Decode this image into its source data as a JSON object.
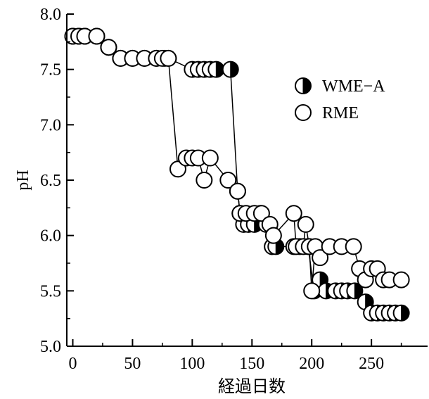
{
  "chart_data": {
    "type": "scatter",
    "xlabel": "経過日数",
    "ylabel": "pH",
    "xlim": [
      -5,
      297
    ],
    "ylim": [
      5.0,
      8.0
    ],
    "x_ticks": [
      "0",
      "50",
      "100",
      "150",
      "200",
      "250"
    ],
    "x_tick_values": [
      0,
      50,
      100,
      150,
      200,
      250
    ],
    "y_ticks": [
      "5.0",
      "5.5",
      "6.0",
      "6.5",
      "7.0",
      "7.5",
      "8.0"
    ],
    "y_tick_values": [
      5.0,
      5.5,
      6.0,
      6.5,
      7.0,
      7.5,
      8.0
    ],
    "legend_position": "top-right",
    "series": [
      {
        "name": "WME−A",
        "marker": "half-filled-circle",
        "color": "#000000",
        "points": [
          [
            0,
            7.8
          ],
          [
            5,
            7.8
          ],
          [
            10,
            7.8
          ],
          [
            20,
            7.8
          ],
          [
            30,
            7.7
          ],
          [
            40,
            7.6
          ],
          [
            50,
            7.6
          ],
          [
            60,
            7.6
          ],
          [
            70,
            7.6
          ],
          [
            77,
            7.6
          ],
          [
            80,
            7.6
          ],
          [
            100,
            7.5
          ],
          [
            105,
            7.5
          ],
          [
            110,
            7.5
          ],
          [
            115,
            7.5
          ],
          [
            120,
            7.5
          ],
          [
            132,
            7.5
          ],
          [
            138,
            6.4
          ],
          [
            140,
            6.2
          ],
          [
            143,
            6.1
          ],
          [
            147,
            6.1
          ],
          [
            152,
            6.1
          ],
          [
            157,
            6.2
          ],
          [
            162,
            6.1
          ],
          [
            167,
            5.9
          ],
          [
            170,
            5.9
          ],
          [
            185,
            5.9
          ],
          [
            190,
            5.9
          ],
          [
            197,
            5.9
          ],
          [
            202,
            5.5
          ],
          [
            207,
            5.6
          ],
          [
            212,
            5.5
          ],
          [
            220,
            5.5
          ],
          [
            225,
            5.5
          ],
          [
            230,
            5.5
          ],
          [
            236,
            5.5
          ],
          [
            245,
            5.4
          ],
          [
            250,
            5.3
          ],
          [
            255,
            5.3
          ],
          [
            260,
            5.3
          ],
          [
            265,
            5.3
          ],
          [
            270,
            5.3
          ],
          [
            275,
            5.3
          ]
        ]
      },
      {
        "name": "RME",
        "marker": "open-circle",
        "color": "#000000",
        "points": [
          [
            0,
            7.8
          ],
          [
            5,
            7.8
          ],
          [
            10,
            7.8
          ],
          [
            20,
            7.8
          ],
          [
            30,
            7.7
          ],
          [
            40,
            7.6
          ],
          [
            50,
            7.6
          ],
          [
            60,
            7.6
          ],
          [
            70,
            7.6
          ],
          [
            75,
            7.6
          ],
          [
            80,
            7.6
          ],
          [
            88,
            6.6
          ],
          [
            95,
            6.7
          ],
          [
            100,
            6.7
          ],
          [
            105,
            6.7
          ],
          [
            110,
            6.5
          ],
          [
            115,
            6.7
          ],
          [
            130,
            6.5
          ],
          [
            138,
            6.4
          ],
          [
            140,
            6.2
          ],
          [
            145,
            6.2
          ],
          [
            152,
            6.2
          ],
          [
            158,
            6.2
          ],
          [
            165,
            6.1
          ],
          [
            168,
            6.0
          ],
          [
            185,
            6.2
          ],
          [
            187,
            5.9
          ],
          [
            193,
            5.9
          ],
          [
            195,
            6.1
          ],
          [
            198,
            5.9
          ],
          [
            200,
            5.5
          ],
          [
            203,
            5.9
          ],
          [
            207,
            5.8
          ],
          [
            215,
            5.9
          ],
          [
            225,
            5.9
          ],
          [
            235,
            5.9
          ],
          [
            240,
            5.7
          ],
          [
            245,
            5.6
          ],
          [
            250,
            5.7
          ],
          [
            255,
            5.7
          ],
          [
            260,
            5.6
          ],
          [
            265,
            5.6
          ],
          [
            275,
            5.6
          ]
        ]
      }
    ]
  }
}
